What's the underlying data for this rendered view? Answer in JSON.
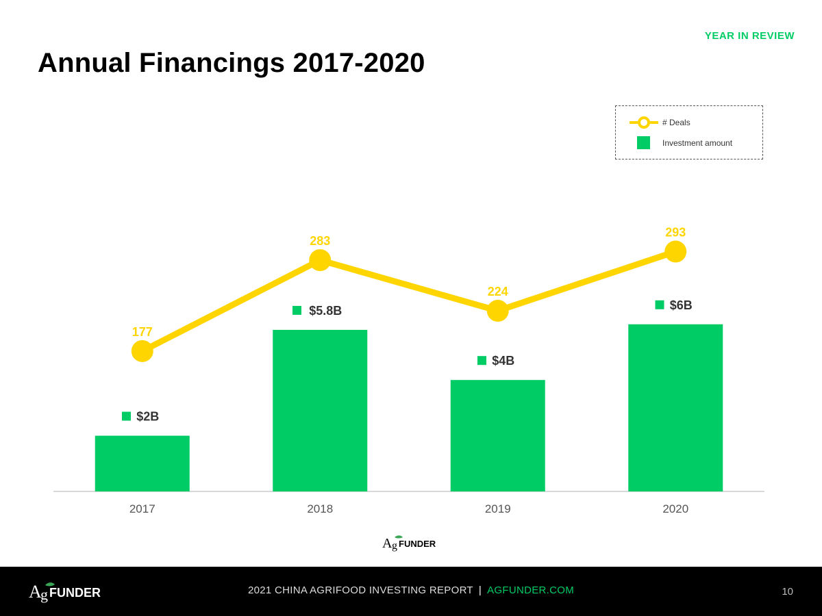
{
  "header": {
    "section_label": "YEAR IN REVIEW",
    "title": "Annual Financings 2017-2020"
  },
  "colors": {
    "accent_green": "#00CC66",
    "line_yellow": "#FFD500",
    "label_dark": "#333333",
    "footer_bg": "#000000"
  },
  "chart_data": {
    "type": "bar",
    "title": "Annual Financings 2017-2020",
    "categories": [
      "2017",
      "2018",
      "2019",
      "2020"
    ],
    "series": [
      {
        "name": "Investment amount",
        "kind": "bar",
        "values": [
          2,
          5.8,
          4,
          6
        ],
        "labels": [
          "$2B",
          "$5.8B",
          "$4B",
          "$6B"
        ],
        "unit": "$B"
      },
      {
        "name": "# Deals",
        "kind": "line",
        "values": [
          177,
          283,
          224,
          293
        ],
        "labels": [
          "177",
          "283",
          "224",
          "293"
        ]
      }
    ],
    "legend": {
      "deals_label": "# Deals",
      "amount_label": "Investment amount",
      "position": "top-right"
    },
    "xlabel": "",
    "ylabel": "",
    "ylim_amount": [
      0,
      6.5
    ],
    "ylim_deals": [
      0,
      350
    ],
    "grid": false
  },
  "branding": {
    "logo_prefix": "A",
    "logo_rest": "FUNDER",
    "logo_mid_prefix": "A",
    "logo_mid_rest": "FUNDER"
  },
  "footer": {
    "report_title": "2021 CHINA AGRIFOOD INVESTING REPORT",
    "separator": "|",
    "site": "AGFUNDER.COM",
    "page_number": "10"
  }
}
